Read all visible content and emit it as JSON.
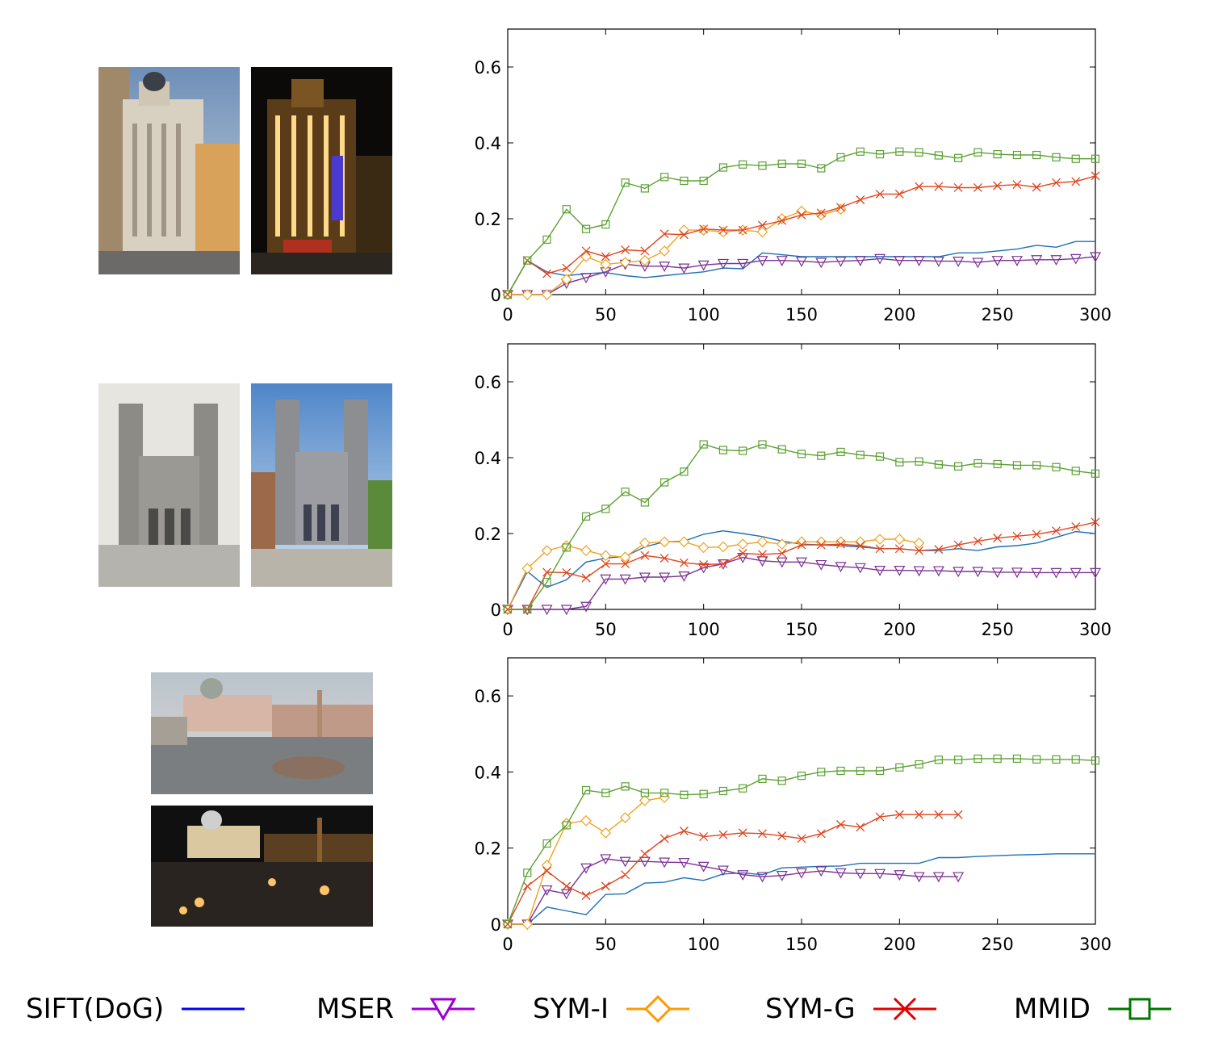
{
  "colors": {
    "SIFT(DoG)": "#1f6fb5",
    "MSER": "#7b3294",
    "SYM-I": "#eea321",
    "SYM-G": "#e0451e",
    "MMID": "#5ba232",
    "legend": {
      "SIFT(DoG)": "#0000ff",
      "MSER": "#9b00d3",
      "SYM-I": "#ff9900",
      "SYM-G": "#e00000",
      "MMID": "#007700"
    }
  },
  "legend": {
    "items": [
      {
        "label": "SIFT(DoG)",
        "marker": "none"
      },
      {
        "label": "MSER",
        "marker": "triangle-down"
      },
      {
        "label": "SYM-I",
        "marker": "diamond"
      },
      {
        "label": "SYM-G",
        "marker": "x"
      },
      {
        "label": "MMID",
        "marker": "square"
      }
    ]
  },
  "photos": [
    {
      "name": "madrid-building-day",
      "desc_icon": "building-photo-icon"
    },
    {
      "name": "madrid-building-night",
      "desc_icon": "building-photo-icon"
    },
    {
      "name": "notre-dame-old",
      "desc_icon": "church-photo-icon"
    },
    {
      "name": "notre-dame-new",
      "desc_icon": "church-photo-icon"
    },
    {
      "name": "st-peters-day",
      "desc_icon": "square-photo-icon"
    },
    {
      "name": "st-peters-night",
      "desc_icon": "square-photo-icon"
    }
  ],
  "chart_data": [
    {
      "type": "line",
      "xlim": [
        0,
        300
      ],
      "ylim": [
        0,
        0.7
      ],
      "xticks": [
        "0",
        "50",
        "100",
        "150",
        "200",
        "250",
        "300"
      ],
      "yticks": [
        "0",
        "0.2",
        "0.4",
        "0.6"
      ],
      "grid": false,
      "series": [
        {
          "name": "SIFT(DoG)",
          "marker": "none",
          "x": [
            0,
            10,
            20,
            30,
            40,
            50,
            60,
            70,
            80,
            90,
            100,
            110,
            120,
            130,
            140,
            150,
            160,
            170,
            180,
            190,
            200,
            210,
            220,
            230,
            240,
            250,
            260,
            270,
            280,
            290,
            300
          ],
          "y": [
            0,
            0.09,
            0.06,
            0.05,
            0.055,
            0.058,
            0.05,
            0.045,
            0.05,
            0.055,
            0.06,
            0.07,
            0.068,
            0.11,
            0.105,
            0.1,
            0.1,
            0.1,
            0.1,
            0.1,
            0.1,
            0.1,
            0.1,
            0.11,
            0.11,
            0.115,
            0.12,
            0.13,
            0.125,
            0.14,
            0.14
          ]
        },
        {
          "name": "MSER",
          "marker": "triangle-down",
          "x": [
            0,
            10,
            20,
            30,
            40,
            50,
            60,
            70,
            80,
            90,
            100,
            110,
            120,
            130,
            140,
            150,
            160,
            170,
            180,
            190,
            200,
            210,
            220,
            230,
            240,
            250,
            260,
            270,
            280,
            290,
            300
          ],
          "y": [
            0,
            0,
            0,
            0.03,
            0.045,
            0.06,
            0.08,
            0.075,
            0.075,
            0.07,
            0.078,
            0.082,
            0.082,
            0.09,
            0.09,
            0.088,
            0.085,
            0.088,
            0.09,
            0.095,
            0.09,
            0.09,
            0.088,
            0.088,
            0.085,
            0.09,
            0.09,
            0.092,
            0.092,
            0.095,
            0.1
          ]
        },
        {
          "name": "SYM-I",
          "marker": "diamond",
          "x": [
            0,
            10,
            20,
            30,
            40,
            50,
            60,
            70,
            80,
            90,
            100,
            110,
            120,
            130,
            140,
            150,
            160,
            170
          ],
          "y": [
            0,
            0,
            0,
            0.04,
            0.1,
            0.08,
            0.085,
            0.09,
            0.115,
            0.17,
            0.17,
            0.165,
            0.17,
            0.165,
            0.2,
            0.22,
            0.21,
            0.225
          ]
        },
        {
          "name": "SYM-G",
          "marker": "x",
          "x": [
            0,
            10,
            20,
            30,
            40,
            50,
            60,
            70,
            80,
            90,
            100,
            110,
            120,
            130,
            140,
            150,
            160,
            170,
            180,
            190,
            200,
            210,
            220,
            230,
            240,
            250,
            260,
            270,
            280,
            290,
            300
          ],
          "y": [
            0,
            0.09,
            0.055,
            0.07,
            0.115,
            0.1,
            0.118,
            0.115,
            0.16,
            0.158,
            0.173,
            0.17,
            0.17,
            0.183,
            0.195,
            0.21,
            0.215,
            0.23,
            0.25,
            0.265,
            0.265,
            0.285,
            0.285,
            0.282,
            0.282,
            0.287,
            0.29,
            0.283,
            0.295,
            0.298,
            0.313
          ]
        },
        {
          "name": "MMID",
          "marker": "square",
          "x": [
            0,
            10,
            20,
            30,
            40,
            50,
            60,
            70,
            80,
            90,
            100,
            110,
            120,
            130,
            140,
            150,
            160,
            170,
            180,
            190,
            200,
            210,
            220,
            230,
            240,
            250,
            260,
            270,
            280,
            290,
            300
          ],
          "y": [
            0,
            0.09,
            0.145,
            0.225,
            0.173,
            0.185,
            0.295,
            0.28,
            0.31,
            0.3,
            0.3,
            0.335,
            0.343,
            0.34,
            0.345,
            0.345,
            0.333,
            0.362,
            0.377,
            0.37,
            0.377,
            0.375,
            0.367,
            0.36,
            0.375,
            0.37,
            0.368,
            0.368,
            0.362,
            0.358,
            0.358
          ]
        }
      ]
    },
    {
      "type": "line",
      "xlim": [
        0,
        300
      ],
      "ylim": [
        0,
        0.7
      ],
      "xticks": [
        "0",
        "50",
        "100",
        "150",
        "200",
        "250",
        "300"
      ],
      "yticks": [
        "0",
        "0.2",
        "0.4",
        "0.6"
      ],
      "grid": false,
      "series": [
        {
          "name": "SIFT(DoG)",
          "marker": "none",
          "x": [
            0,
            10,
            20,
            30,
            40,
            50,
            60,
            70,
            80,
            90,
            100,
            110,
            120,
            130,
            140,
            150,
            160,
            170,
            180,
            190,
            200,
            210,
            220,
            230,
            240,
            250,
            260,
            270,
            280,
            290,
            300
          ],
          "y": [
            0,
            0.1,
            0.058,
            0.078,
            0.125,
            0.135,
            0.14,
            0.165,
            0.178,
            0.18,
            0.198,
            0.207,
            0.2,
            0.192,
            0.18,
            0.172,
            0.17,
            0.168,
            0.165,
            0.16,
            0.16,
            0.155,
            0.155,
            0.16,
            0.155,
            0.165,
            0.168,
            0.175,
            0.19,
            0.205,
            0.2
          ]
        },
        {
          "name": "MSER",
          "marker": "triangle-down",
          "x": [
            0,
            10,
            20,
            30,
            40,
            50,
            60,
            70,
            80,
            90,
            100,
            110,
            120,
            130,
            140,
            150,
            160,
            170,
            180,
            190,
            200,
            210,
            220,
            230,
            240,
            250,
            260,
            270,
            280,
            290,
            300
          ],
          "y": [
            0,
            0,
            0,
            0,
            0.008,
            0.08,
            0.08,
            0.085,
            0.085,
            0.088,
            0.11,
            0.12,
            0.137,
            0.128,
            0.125,
            0.125,
            0.118,
            0.113,
            0.11,
            0.103,
            0.103,
            0.102,
            0.102,
            0.1,
            0.1,
            0.098,
            0.098,
            0.097,
            0.097,
            0.097,
            0.097
          ]
        },
        {
          "name": "SYM-I",
          "marker": "diamond",
          "x": [
            0,
            10,
            20,
            30,
            40,
            50,
            60,
            70,
            80,
            90,
            100,
            110,
            120,
            130,
            140,
            150,
            160,
            170,
            180,
            190,
            200,
            210
          ],
          "y": [
            0,
            0.108,
            0.155,
            0.168,
            0.155,
            0.142,
            0.138,
            0.175,
            0.178,
            0.178,
            0.163,
            0.165,
            0.172,
            0.178,
            0.172,
            0.178,
            0.178,
            0.178,
            0.178,
            0.185,
            0.185,
            0.175
          ]
        },
        {
          "name": "SYM-G",
          "marker": "x",
          "x": [
            0,
            10,
            20,
            30,
            40,
            50,
            60,
            70,
            80,
            90,
            100,
            110,
            120,
            130,
            140,
            150,
            160,
            170,
            180,
            190,
            200,
            210,
            220,
            230,
            240,
            250,
            260,
            270,
            280,
            290,
            300
          ],
          "y": [
            0,
            0,
            0.098,
            0.097,
            0.083,
            0.12,
            0.12,
            0.142,
            0.135,
            0.123,
            0.118,
            0.12,
            0.148,
            0.145,
            0.148,
            0.17,
            0.17,
            0.172,
            0.168,
            0.16,
            0.16,
            0.155,
            0.158,
            0.17,
            0.18,
            0.188,
            0.193,
            0.198,
            0.207,
            0.218,
            0.23
          ]
        },
        {
          "name": "MMID",
          "marker": "square",
          "x": [
            0,
            10,
            20,
            30,
            40,
            50,
            60,
            70,
            80,
            90,
            100,
            110,
            120,
            130,
            140,
            150,
            160,
            170,
            180,
            190,
            200,
            210,
            220,
            230,
            240,
            250,
            260,
            270,
            280,
            290,
            300
          ],
          "y": [
            0,
            0,
            0.072,
            0.163,
            0.245,
            0.265,
            0.31,
            0.282,
            0.335,
            0.363,
            0.435,
            0.42,
            0.418,
            0.435,
            0.422,
            0.41,
            0.405,
            0.415,
            0.407,
            0.403,
            0.388,
            0.39,
            0.382,
            0.377,
            0.385,
            0.383,
            0.38,
            0.38,
            0.375,
            0.365,
            0.358
          ]
        }
      ]
    },
    {
      "type": "line",
      "xlim": [
        0,
        300
      ],
      "ylim": [
        0,
        0.7
      ],
      "xticks": [
        "0",
        "50",
        "100",
        "150",
        "200",
        "250",
        "300"
      ],
      "yticks": [
        "0",
        "0.2",
        "0.4",
        "0.6"
      ],
      "grid": false,
      "series": [
        {
          "name": "SIFT(DoG)",
          "marker": "none",
          "x": [
            0,
            10,
            20,
            30,
            40,
            50,
            60,
            70,
            80,
            90,
            100,
            110,
            120,
            130,
            140,
            150,
            160,
            170,
            180,
            190,
            200,
            210,
            220,
            230,
            240,
            250,
            260,
            270,
            280,
            290,
            300
          ],
          "y": [
            0,
            0,
            0.045,
            0.035,
            0.025,
            0.078,
            0.08,
            0.108,
            0.11,
            0.122,
            0.115,
            0.132,
            0.135,
            0.13,
            0.148,
            0.15,
            0.152,
            0.153,
            0.16,
            0.16,
            0.16,
            0.16,
            0.175,
            0.175,
            0.178,
            0.18,
            0.182,
            0.183,
            0.185,
            0.185,
            0.185
          ]
        },
        {
          "name": "MSER",
          "marker": "triangle-down",
          "x": [
            0,
            10,
            20,
            30,
            40,
            50,
            60,
            70,
            80,
            90,
            100,
            110,
            120,
            130,
            140,
            150,
            160,
            170,
            180,
            190,
            200,
            210,
            220,
            230
          ],
          "y": [
            0,
            0,
            0.09,
            0.08,
            0.148,
            0.172,
            0.165,
            0.165,
            0.163,
            0.162,
            0.152,
            0.142,
            0.13,
            0.125,
            0.128,
            0.135,
            0.14,
            0.135,
            0.133,
            0.133,
            0.13,
            0.125,
            0.125,
            0.125
          ]
        },
        {
          "name": "SYM-I",
          "marker": "diamond",
          "x": [
            0,
            10,
            20,
            30,
            40,
            50,
            60,
            70,
            80
          ],
          "y": [
            0,
            0,
            0.155,
            0.265,
            0.272,
            0.24,
            0.28,
            0.325,
            0.333
          ]
        },
        {
          "name": "SYM-G",
          "marker": "x",
          "x": [
            0,
            10,
            20,
            30,
            40,
            50,
            60,
            70,
            80,
            90,
            100,
            110,
            120,
            130,
            140,
            150,
            160,
            170,
            180,
            190,
            200,
            210,
            220,
            230
          ],
          "y": [
            0,
            0.1,
            0.14,
            0.1,
            0.075,
            0.1,
            0.13,
            0.185,
            0.225,
            0.245,
            0.23,
            0.235,
            0.24,
            0.238,
            0.232,
            0.225,
            0.238,
            0.262,
            0.255,
            0.282,
            0.288,
            0.288,
            0.288,
            0.288
          ]
        },
        {
          "name": "MMID",
          "marker": "square",
          "x": [
            0,
            10,
            20,
            30,
            40,
            50,
            60,
            70,
            80,
            90,
            100,
            110,
            120,
            130,
            140,
            150,
            160,
            170,
            180,
            190,
            200,
            210,
            220,
            230,
            240,
            250,
            260,
            270,
            280,
            290,
            300
          ],
          "y": [
            0,
            0.135,
            0.212,
            0.26,
            0.352,
            0.345,
            0.362,
            0.345,
            0.345,
            0.34,
            0.342,
            0.35,
            0.357,
            0.382,
            0.377,
            0.39,
            0.4,
            0.403,
            0.403,
            0.403,
            0.412,
            0.42,
            0.432,
            0.432,
            0.435,
            0.435,
            0.435,
            0.433,
            0.433,
            0.433,
            0.43
          ]
        }
      ]
    }
  ]
}
